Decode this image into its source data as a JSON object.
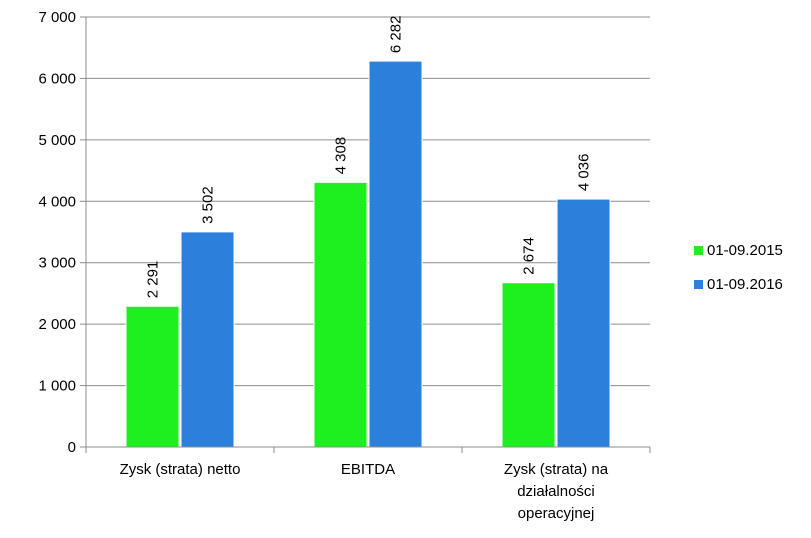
{
  "chart_data": {
    "type": "bar",
    "categories": [
      [
        "Zysk (strata) netto"
      ],
      [
        "EBITDA"
      ],
      [
        "Zysk (strata) na",
        "działalności",
        "operacyjnej"
      ]
    ],
    "series": [
      {
        "name": "01-09.2015",
        "color": "#1EEF1E",
        "values": [
          2291,
          4308,
          2674
        ],
        "labels": [
          "2 291",
          "4 308",
          "2 674"
        ]
      },
      {
        "name": "01-09.2016",
        "color": "#2B80DB",
        "values": [
          3502,
          6282,
          4036
        ],
        "labels": [
          "3 502",
          "6 282",
          "4 036"
        ]
      }
    ],
    "ylim": [
      0,
      7000
    ],
    "yticks": [
      0,
      1000,
      2000,
      3000,
      4000,
      5000,
      6000,
      7000
    ],
    "ytick_labels": [
      "0",
      "1 000",
      "2 000",
      "3 000",
      "4 000",
      "5 000",
      "6 000",
      "7 000"
    ],
    "grid": true,
    "legend_position": "right"
  }
}
